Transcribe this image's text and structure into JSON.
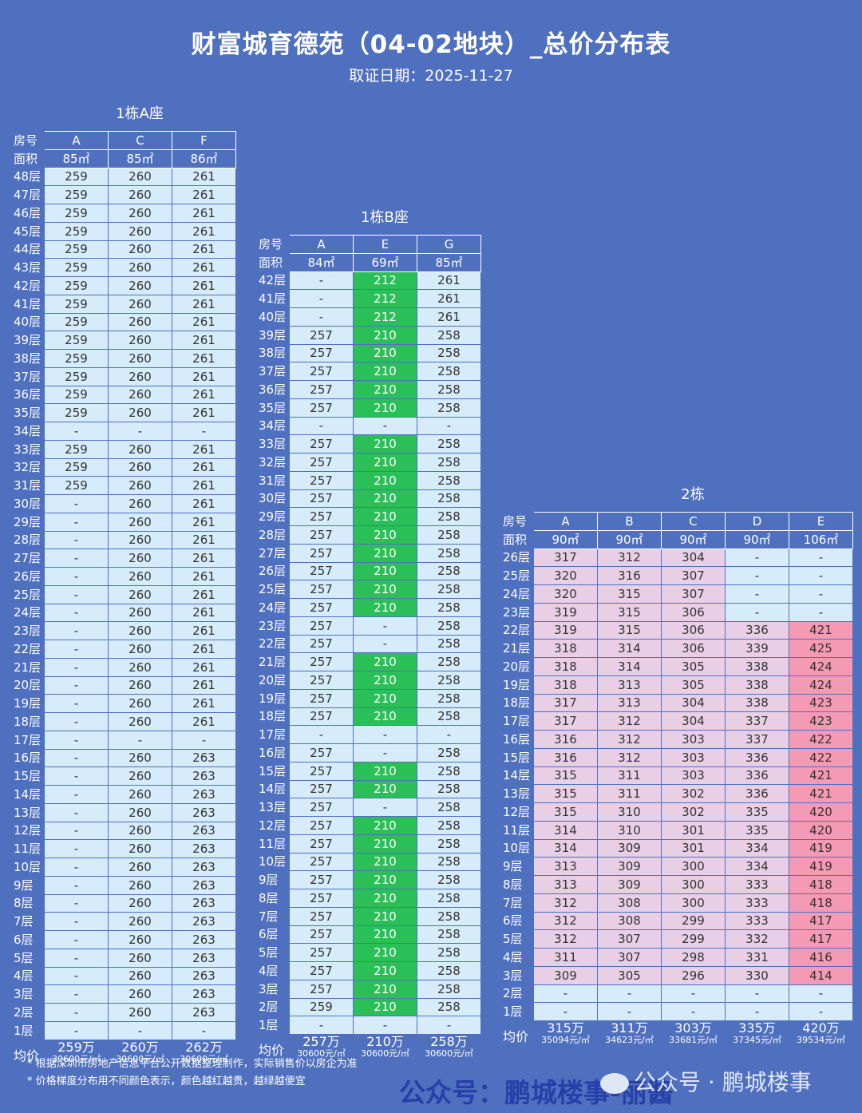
{
  "title": "财富城育德苑（04-02地块）_总价分布表",
  "subtitle": "取证日期：2025-11-27",
  "labels": {
    "room": "房号",
    "area": "面积",
    "avg": "均价"
  },
  "buildings": [
    {
      "name": "1栋A座",
      "columns": [
        "A",
        "C",
        "F"
      ],
      "areas": [
        "85㎡",
        "85㎡",
        "86㎡"
      ],
      "floors": [
        "48层",
        "47层",
        "46层",
        "45层",
        "44层",
        "43层",
        "42层",
        "41层",
        "40层",
        "39层",
        "38层",
        "37层",
        "36层",
        "35层",
        "34层",
        "33层",
        "32层",
        "31层",
        "30层",
        "29层",
        "28层",
        "27层",
        "26层",
        "25层",
        "24层",
        "23层",
        "22层",
        "21层",
        "20层",
        "19层",
        "18层",
        "17层",
        "16层",
        "15层",
        "14层",
        "13层",
        "12层",
        "11层",
        "10层",
        "9层",
        "8层",
        "7层",
        "6层",
        "5层",
        "4层",
        "3层",
        "2层",
        "1层"
      ],
      "rows": [
        [
          "259",
          "260",
          "261"
        ],
        [
          "259",
          "260",
          "261"
        ],
        [
          "259",
          "260",
          "261"
        ],
        [
          "259",
          "260",
          "261"
        ],
        [
          "259",
          "260",
          "261"
        ],
        [
          "259",
          "260",
          "261"
        ],
        [
          "259",
          "260",
          "261"
        ],
        [
          "259",
          "260",
          "261"
        ],
        [
          "259",
          "260",
          "261"
        ],
        [
          "259",
          "260",
          "261"
        ],
        [
          "259",
          "260",
          "261"
        ],
        [
          "259",
          "260",
          "261"
        ],
        [
          "259",
          "260",
          "261"
        ],
        [
          "259",
          "260",
          "261"
        ],
        [
          "-",
          "-",
          "-"
        ],
        [
          "259",
          "260",
          "261"
        ],
        [
          "259",
          "260",
          "261"
        ],
        [
          "259",
          "260",
          "261"
        ],
        [
          "-",
          "260",
          "261"
        ],
        [
          "-",
          "260",
          "261"
        ],
        [
          "-",
          "260",
          "261"
        ],
        [
          "-",
          "260",
          "261"
        ],
        [
          "-",
          "260",
          "261"
        ],
        [
          "-",
          "260",
          "261"
        ],
        [
          "-",
          "260",
          "261"
        ],
        [
          "-",
          "260",
          "261"
        ],
        [
          "-",
          "260",
          "261"
        ],
        [
          "-",
          "260",
          "261"
        ],
        [
          "-",
          "260",
          "261"
        ],
        [
          "-",
          "260",
          "261"
        ],
        [
          "-",
          "260",
          "261"
        ],
        [
          "-",
          "-",
          "-"
        ],
        [
          "-",
          "260",
          "263"
        ],
        [
          "-",
          "260",
          "263"
        ],
        [
          "-",
          "260",
          "263"
        ],
        [
          "-",
          "260",
          "263"
        ],
        [
          "-",
          "260",
          "263"
        ],
        [
          "-",
          "260",
          "263"
        ],
        [
          "-",
          "260",
          "263"
        ],
        [
          "-",
          "260",
          "263"
        ],
        [
          "-",
          "260",
          "263"
        ],
        [
          "-",
          "260",
          "263"
        ],
        [
          "-",
          "260",
          "263"
        ],
        [
          "-",
          "260",
          "263"
        ],
        [
          "-",
          "260",
          "263"
        ],
        [
          "-",
          "260",
          "263"
        ],
        [
          "-",
          "260",
          "263"
        ],
        [
          "-",
          "-",
          "-"
        ]
      ],
      "colors": [],
      "avg_total": [
        "259万",
        "260万",
        "262万"
      ],
      "avg_unit": [
        "30600元/㎡",
        "30600元/㎡",
        "30600元/㎡"
      ]
    },
    {
      "name": "1栋B座",
      "columns": [
        "A",
        "E",
        "G"
      ],
      "areas": [
        "84㎡",
        "69㎡",
        "85㎡"
      ],
      "floors": [
        "42层",
        "41层",
        "40层",
        "39层",
        "38层",
        "37层",
        "36层",
        "35层",
        "34层",
        "33层",
        "32层",
        "31层",
        "30层",
        "29层",
        "28层",
        "27层",
        "26层",
        "25层",
        "24层",
        "23层",
        "22层",
        "21层",
        "20层",
        "19层",
        "18层",
        "17层",
        "16层",
        "15层",
        "14层",
        "13层",
        "12层",
        "11层",
        "10层",
        "9层",
        "8层",
        "7层",
        "6层",
        "5层",
        "4层",
        "3层",
        "2层",
        "1层"
      ],
      "rows": [
        [
          "-",
          "212",
          "261"
        ],
        [
          "-",
          "212",
          "261"
        ],
        [
          "-",
          "212",
          "261"
        ],
        [
          "257",
          "210",
          "258"
        ],
        [
          "257",
          "210",
          "258"
        ],
        [
          "257",
          "210",
          "258"
        ],
        [
          "257",
          "210",
          "258"
        ],
        [
          "257",
          "210",
          "258"
        ],
        [
          "-",
          "-",
          "-"
        ],
        [
          "257",
          "210",
          "258"
        ],
        [
          "257",
          "210",
          "258"
        ],
        [
          "257",
          "210",
          "258"
        ],
        [
          "257",
          "210",
          "258"
        ],
        [
          "257",
          "210",
          "258"
        ],
        [
          "257",
          "210",
          "258"
        ],
        [
          "257",
          "210",
          "258"
        ],
        [
          "257",
          "210",
          "258"
        ],
        [
          "257",
          "210",
          "258"
        ],
        [
          "257",
          "210",
          "258"
        ],
        [
          "257",
          "-",
          "258"
        ],
        [
          "257",
          "-",
          "258"
        ],
        [
          "257",
          "210",
          "258"
        ],
        [
          "257",
          "210",
          "258"
        ],
        [
          "257",
          "210",
          "258"
        ],
        [
          "257",
          "210",
          "258"
        ],
        [
          "-",
          "-",
          "-"
        ],
        [
          "257",
          "-",
          "258"
        ],
        [
          "257",
          "210",
          "258"
        ],
        [
          "257",
          "210",
          "258"
        ],
        [
          "257",
          "-",
          "258"
        ],
        [
          "257",
          "210",
          "258"
        ],
        [
          "257",
          "210",
          "258"
        ],
        [
          "257",
          "210",
          "258"
        ],
        [
          "257",
          "210",
          "258"
        ],
        [
          "257",
          "210",
          "258"
        ],
        [
          "257",
          "210",
          "258"
        ],
        [
          "257",
          "210",
          "258"
        ],
        [
          "257",
          "210",
          "258"
        ],
        [
          "257",
          "210",
          "258"
        ],
        [
          "257",
          "210",
          "258"
        ],
        [
          "259",
          "210",
          "258"
        ],
        [
          "-",
          "-",
          "-"
        ]
      ],
      "colors": [],
      "avg_total": [
        "257万",
        "210万",
        "258万"
      ],
      "avg_unit": [
        "30600元/㎡",
        "30600元/㎡",
        "30600元/㎡"
      ]
    },
    {
      "name": "2栋",
      "columns": [
        "A",
        "B",
        "C",
        "D",
        "E"
      ],
      "areas": [
        "90㎡",
        "90㎡",
        "90㎡",
        "90㎡",
        "106㎡"
      ],
      "floors": [
        "26层",
        "25层",
        "24层",
        "23层",
        "22层",
        "21层",
        "20层",
        "19层",
        "18层",
        "17层",
        "16层",
        "15层",
        "14层",
        "13层",
        "12层",
        "11层",
        "10层",
        "9层",
        "8层",
        "7层",
        "6层",
        "5层",
        "4层",
        "3层",
        "2层",
        "1层"
      ],
      "rows": [
        [
          "317",
          "312",
          "304",
          "-",
          "-"
        ],
        [
          "320",
          "316",
          "307",
          "-",
          "-"
        ],
        [
          "320",
          "315",
          "307",
          "-",
          "-"
        ],
        [
          "319",
          "315",
          "306",
          "-",
          "-"
        ],
        [
          "319",
          "315",
          "306",
          "336",
          "421"
        ],
        [
          "318",
          "314",
          "306",
          "339",
          "425"
        ],
        [
          "318",
          "314",
          "305",
          "338",
          "424"
        ],
        [
          "318",
          "313",
          "305",
          "338",
          "424"
        ],
        [
          "317",
          "313",
          "304",
          "338",
          "423"
        ],
        [
          "317",
          "312",
          "304",
          "337",
          "423"
        ],
        [
          "316",
          "312",
          "303",
          "337",
          "422"
        ],
        [
          "316",
          "312",
          "303",
          "336",
          "422"
        ],
        [
          "315",
          "311",
          "303",
          "336",
          "421"
        ],
        [
          "315",
          "311",
          "302",
          "336",
          "421"
        ],
        [
          "315",
          "310",
          "302",
          "335",
          "420"
        ],
        [
          "314",
          "310",
          "301",
          "335",
          "420"
        ],
        [
          "314",
          "309",
          "301",
          "334",
          "419"
        ],
        [
          "313",
          "309",
          "300",
          "334",
          "419"
        ],
        [
          "313",
          "309",
          "300",
          "333",
          "418"
        ],
        [
          "312",
          "308",
          "300",
          "333",
          "418"
        ],
        [
          "312",
          "308",
          "299",
          "333",
          "417"
        ],
        [
          "312",
          "307",
          "299",
          "332",
          "417"
        ],
        [
          "311",
          "307",
          "298",
          "331",
          "416"
        ],
        [
          "309",
          "305",
          "296",
          "330",
          "414"
        ],
        [
          "-",
          "-",
          "-",
          "-",
          "-"
        ],
        [
          "-",
          "-",
          "-",
          "-",
          "-"
        ]
      ],
      "colors": [],
      "avg_total": [
        "315万",
        "311万",
        "303万",
        "335万",
        "420万"
      ],
      "avg_unit": [
        "35094元/㎡",
        "34623元/㎡",
        "33681元/㎡",
        "37345元/㎡",
        "39534元/㎡"
      ]
    }
  ],
  "palette": {
    "background": "#4f6fbf",
    "cell": "#d6ecfa",
    "green": "#2bbf57",
    "pink": "#e9cfe6",
    "red": "#f59ab5"
  },
  "notes": [
    "* 根据深圳市房地产信息平台公开数据整理制作，实际销售价以房企为准",
    "* 价格梯度分布用不同颜色表示，颜色越红越贵，越绿越便宜"
  ],
  "watermark": {
    "left": "公众号：鹏城楼事-丽酱",
    "right": "公众号 · 鹏城楼事"
  }
}
